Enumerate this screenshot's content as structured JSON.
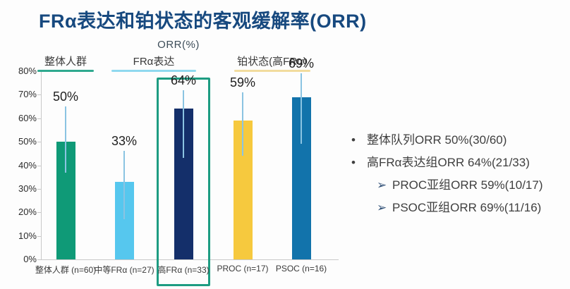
{
  "title": "FRα表达和铂状态的客观缓解率(ORR)",
  "chart_data": {
    "type": "bar",
    "title": "ORR(%)",
    "xlabel": "",
    "ylabel": "",
    "ylim": [
      0,
      80
    ],
    "ytick_step": 10,
    "ytick_suffix": "%",
    "grid": false,
    "legend": "none",
    "categories": [
      "整体人群 (n=60)",
      "中等FRα (n=27)",
      "高FRα (n=33)",
      "PROC (n=17)",
      "PSOC (n=16)"
    ],
    "values": [
      50,
      33,
      64,
      59,
      69
    ],
    "value_labels": [
      "50%",
      "33%",
      "64%",
      "59%",
      "69%"
    ],
    "error_low": [
      37,
      17,
      43,
      44,
      49
    ],
    "error_high": [
      65,
      46,
      72,
      71,
      79
    ],
    "bar_colors": [
      "#0f9a77",
      "#56c7ee",
      "#142f6a",
      "#f6c93e",
      "#1273ab"
    ],
    "error_color": "#8bc4e2",
    "groups": [
      {
        "label": "整体人群",
        "span": [
          0,
          0
        ],
        "underline_color": "#2fa98f"
      },
      {
        "label": "FRα表达",
        "span": [
          1,
          2
        ],
        "underline_color": "#90d9ef"
      },
      {
        "label": "铂状态(高FRα)",
        "span": [
          3,
          4
        ],
        "underline_color": "#f2dc9e"
      }
    ],
    "highlighted_category_index": 2,
    "highlight_box_color": "#1d9c82"
  },
  "summary": {
    "items": [
      {
        "level": 1,
        "marker": "•",
        "text": "整体队列ORR 50%(30/60)"
      },
      {
        "level": 1,
        "marker": "•",
        "text": "高FRα表达组ORR 64%(21/33)"
      },
      {
        "level": 2,
        "marker": "➢",
        "text": "PROC亚组ORR 59%(10/17)"
      },
      {
        "level": 2,
        "marker": "➢",
        "text": "PSOC亚组ORR 69%(11/16)"
      }
    ]
  }
}
